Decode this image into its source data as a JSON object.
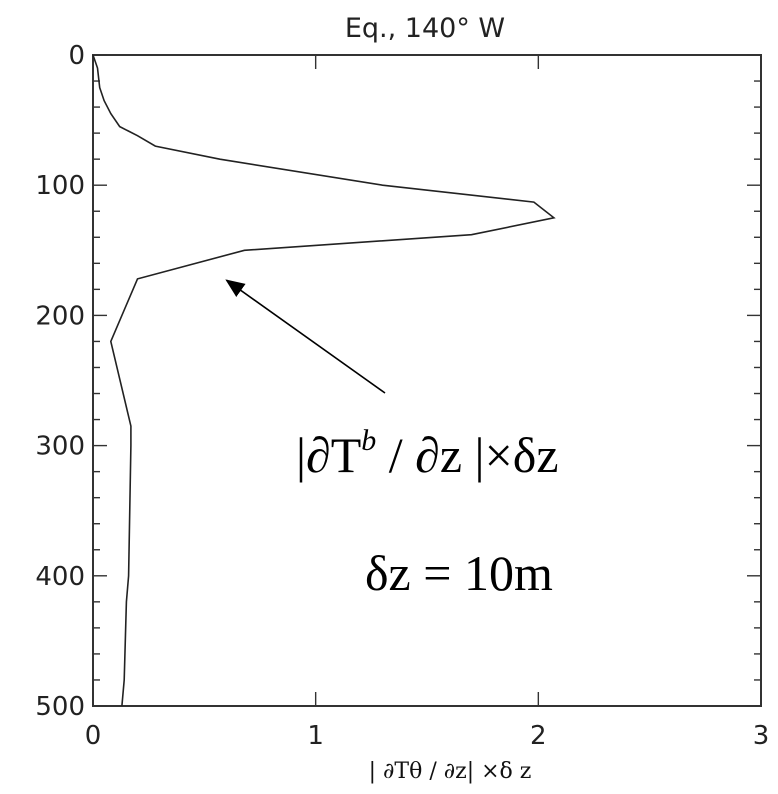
{
  "chart_data": {
    "type": "line",
    "title": "Eq.,  140° W",
    "xlabel": "| ∂Tθ / ∂z|  ×δ z",
    "ylabel": "",
    "xlim": [
      0,
      3
    ],
    "ylim": [
      500,
      0
    ],
    "x_ticks": [
      "0",
      "1",
      "2",
      "3"
    ],
    "y_ticks": [
      "0",
      "100",
      "200",
      "300",
      "400",
      "500"
    ],
    "grid": false,
    "series": [
      {
        "x": [
          0.0,
          0.02,
          0.03,
          0.05,
          0.08,
          0.12,
          0.2,
          0.28,
          0.57,
          1.3,
          1.98,
          2.07,
          1.7,
          0.68,
          0.2,
          0.08,
          0.17,
          0.17,
          0.16,
          0.15,
          0.14,
          0.13
        ],
        "y": [
          0,
          10,
          25,
          35,
          45,
          55,
          62,
          70,
          80,
          100,
          113,
          125,
          138,
          150,
          172,
          220,
          285,
          300,
          400,
          420,
          480,
          500
        ]
      }
    ],
    "annotations": [
      {
        "text": "|∂Tᵇ / ∂z|×δz",
        "arrow_to": [
          0.6,
          173
        ]
      },
      {
        "text": "δz = 10m"
      }
    ]
  }
}
